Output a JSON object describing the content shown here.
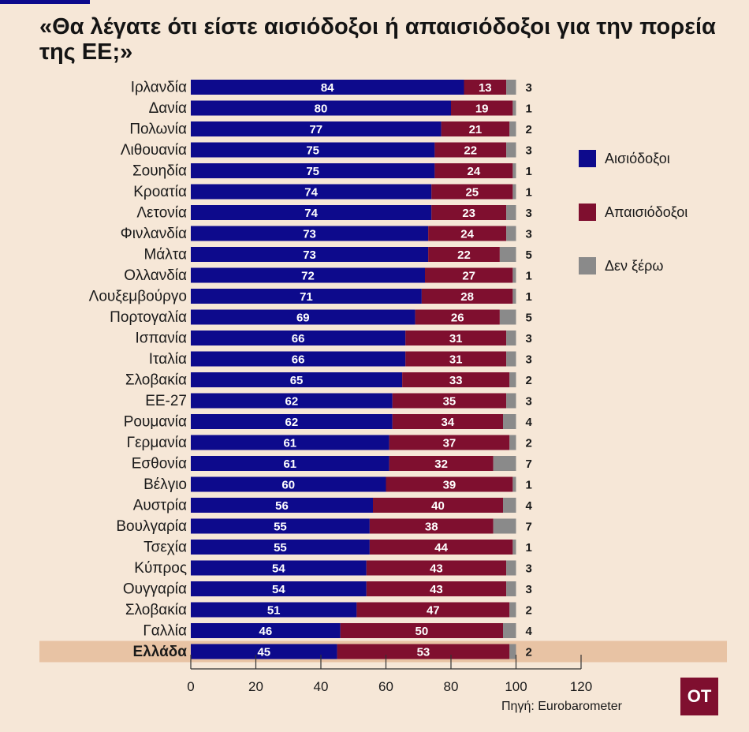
{
  "title": "«Θα λέγατε ότι είστε αισιόδοξοι ή απαισιόδοξοι για την πορεία της ΕΕ;»",
  "source": "Πηγή: Eurobarometer",
  "logo_text": "OT",
  "colors": {
    "optimists": "#0d0a8c",
    "pessimists": "#7f0f2f",
    "dont_know": "#8a8a8a",
    "highlight_band": "#e8c3a4",
    "background": "#f6e7d7"
  },
  "chart_data": {
    "type": "bar",
    "orientation": "horizontal",
    "stacked": true,
    "categories": [
      "Ιρλανδία",
      "Δανία",
      "Πολωνία",
      "Λιθουανία",
      "Σουηδία",
      "Κροατία",
      "Λετονία",
      "Φινλανδία",
      "Μάλτα",
      "Ολλανδία",
      "Λουξεμβούργο",
      "Πορτογαλία",
      "Ισπανία",
      "Ιταλία",
      "Σλοβακία",
      "ΕΕ-27",
      "Ρουμανία",
      "Γερμανία",
      "Εσθονία",
      "Βέλγιο",
      "Αυστρία",
      "Βουλγαρία",
      "Τσεχία",
      "Κύπρος",
      "Ουγγαρία",
      "Σλοβακία",
      "Γαλλία",
      "Ελλάδα"
    ],
    "highlight": "Ελλάδα",
    "series": [
      {
        "name": "Αισιόδοξοι",
        "values": [
          84,
          80,
          77,
          75,
          75,
          74,
          74,
          73,
          73,
          72,
          71,
          69,
          66,
          66,
          65,
          62,
          62,
          61,
          61,
          60,
          56,
          55,
          55,
          54,
          54,
          51,
          46,
          45
        ]
      },
      {
        "name": "Απαισιόδοξοι",
        "values": [
          13,
          19,
          21,
          22,
          24,
          25,
          23,
          24,
          22,
          27,
          28,
          26,
          31,
          31,
          33,
          35,
          34,
          37,
          32,
          39,
          40,
          38,
          44,
          43,
          43,
          47,
          50,
          53
        ]
      },
      {
        "name": "Δεν ξέρω",
        "values": [
          3,
          1,
          2,
          3,
          1,
          1,
          3,
          3,
          5,
          1,
          1,
          5,
          3,
          3,
          2,
          3,
          4,
          2,
          7,
          1,
          4,
          7,
          1,
          3,
          3,
          2,
          4,
          2
        ]
      }
    ],
    "xlim": [
      0,
      120
    ],
    "xticks": [
      0,
      20,
      40,
      60,
      80,
      100,
      120
    ],
    "legend_position": "right"
  }
}
